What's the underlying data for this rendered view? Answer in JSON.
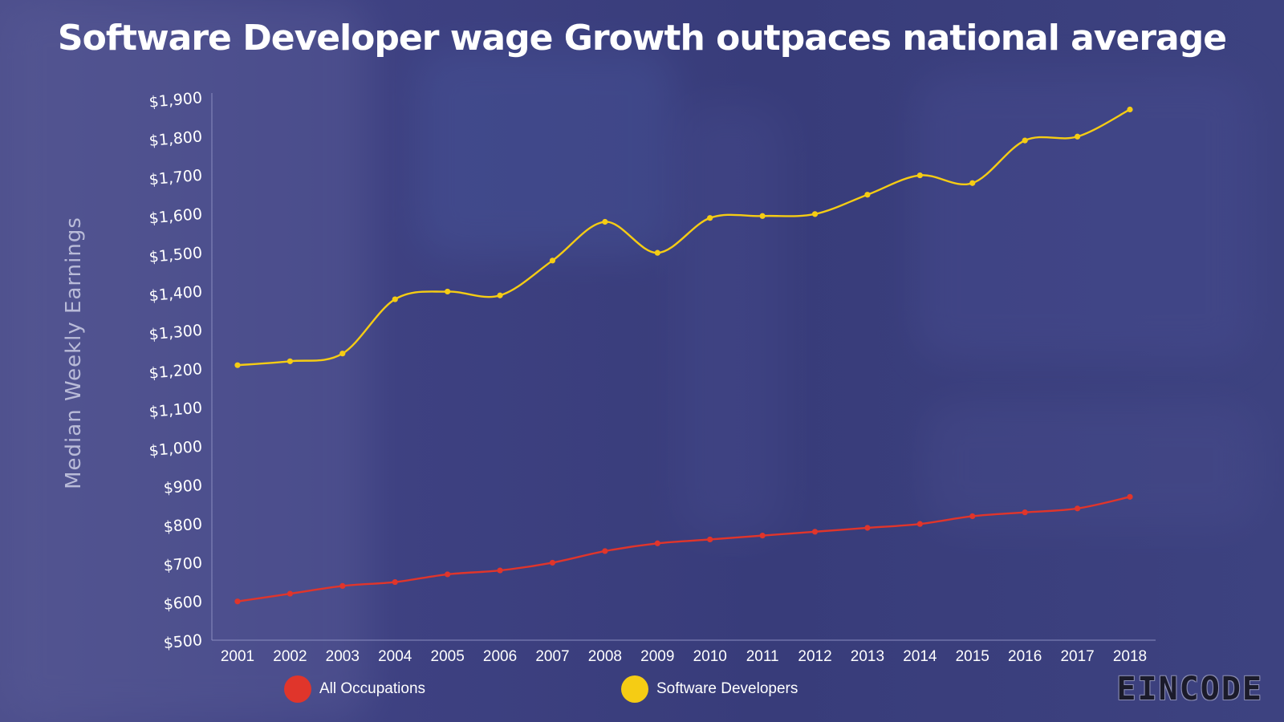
{
  "chart_data": {
    "type": "line",
    "title": "Software Developer wage Growth outpaces national average",
    "ylabel": "Median Weekly Earnings",
    "xlabel": "",
    "ylim": [
      500,
      1900
    ],
    "y_ticks": [
      "$500",
      "$600",
      "$700",
      "$800",
      "$900",
      "$1,000",
      "$1,100",
      "$1,200",
      "$1,300",
      "$1,400",
      "$1,500",
      "$1,600",
      "$1,700",
      "$1,800",
      "$1,900"
    ],
    "y_tick_values": [
      500,
      600,
      700,
      800,
      900,
      1000,
      1100,
      1200,
      1300,
      1400,
      1500,
      1600,
      1700,
      1800,
      1900
    ],
    "categories": [
      "2001",
      "2002",
      "2003",
      "2004",
      "2005",
      "2006",
      "2007",
      "2008",
      "2009",
      "2010",
      "2011",
      "2012",
      "2013",
      "2014",
      "2015",
      "2016",
      "2017",
      "2018"
    ],
    "series": [
      {
        "name": "All Occupations",
        "color": "#e0352b",
        "values": [
          600,
          620,
          640,
          650,
          670,
          680,
          700,
          730,
          750,
          760,
          770,
          780,
          790,
          800,
          820,
          830,
          840,
          870
        ]
      },
      {
        "name": "Software Developers",
        "color": "#f5cc14",
        "values": [
          1210,
          1220,
          1240,
          1380,
          1400,
          1390,
          1480,
          1580,
          1500,
          1590,
          1595,
          1600,
          1650,
          1700,
          1680,
          1790,
          1800,
          1870
        ]
      }
    ],
    "grid": false,
    "legend": "bottom"
  },
  "brand": {
    "text": "EINCODE"
  }
}
